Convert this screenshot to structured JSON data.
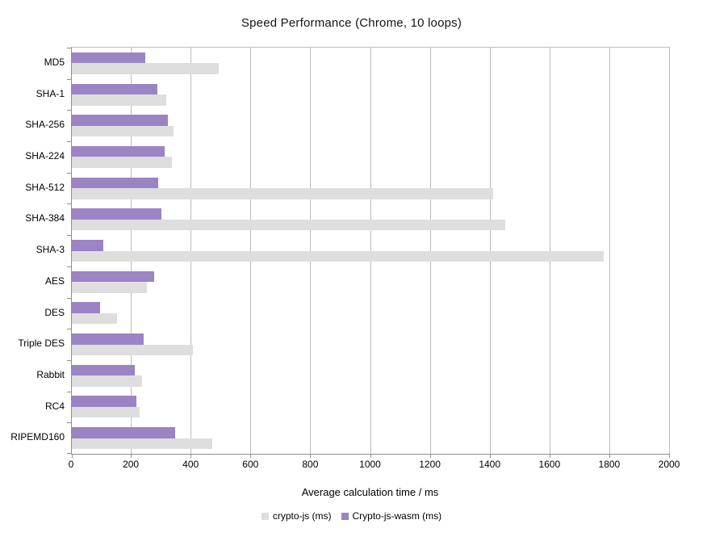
{
  "title": "Speed Performance (Chrome, 10 loops)",
  "chart_data": {
    "type": "bar",
    "orientation": "horizontal",
    "title": "Speed Performance (Chrome, 10 loops)",
    "categories": [
      "MD5",
      "SHA-1",
      "SHA-256",
      "SHA-224",
      "SHA-512",
      "SHA-384",
      "SHA-3",
      "AES",
      "DES",
      "Triple DES",
      "Rabbit",
      "RC4",
      "RIPEMD160"
    ],
    "series": [
      {
        "name": "crypto-js (ms)",
        "color": "#dedede",
        "values": [
          490,
          315,
          340,
          335,
          1410,
          1450,
          1780,
          250,
          150,
          405,
          235,
          228,
          470
        ]
      },
      {
        "name": "Crypto-js-wasm (ms)",
        "color": "#9a84c4",
        "values": [
          245,
          285,
          320,
          310,
          290,
          300,
          105,
          275,
          95,
          240,
          210,
          215,
          345
        ]
      }
    ],
    "xlabel": "Average calculation time / ms",
    "xlim": [
      0,
      2000
    ],
    "xticks": [
      0,
      200,
      400,
      600,
      800,
      1000,
      1200,
      1400,
      1600,
      1800,
      2000
    ],
    "grid": true,
    "legend_position": "bottom",
    "series_stack_order_top_to_bottom": [
      "Crypto-js-wasm (ms)",
      "crypto-js (ms)"
    ]
  },
  "colors": {
    "background": "#ffffff",
    "gridline": "#bcbcbc",
    "axis": "#8f8f8f",
    "text": "#000000",
    "series_crypto_js": "#dedede",
    "series_crypto_js_wasm": "#9a84c4"
  }
}
